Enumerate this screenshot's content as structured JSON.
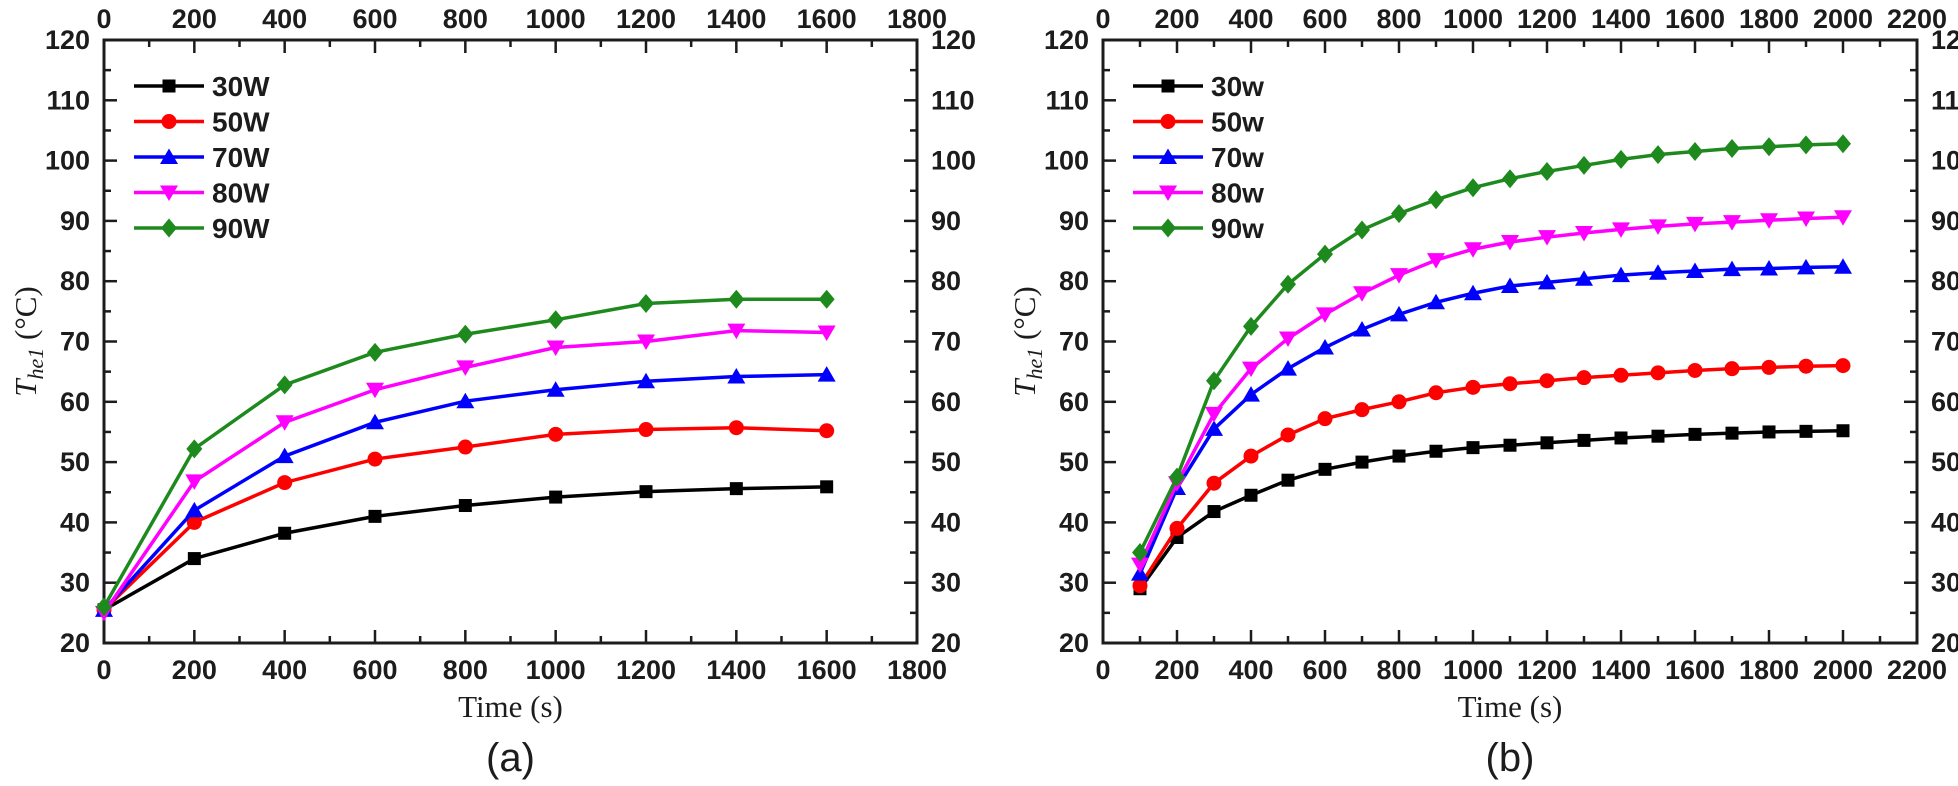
{
  "figure": {
    "background": "#ffffff"
  },
  "chart_data": [
    {
      "type": "line",
      "panel_label": "(a)",
      "xlabel": "Time (s)",
      "ylabel": {
        "symbol": "T",
        "subscript": "he1",
        "unit": "(°C)"
      },
      "xlim": [
        0,
        1800
      ],
      "ylim": [
        20,
        120
      ],
      "xticks": [
        0,
        200,
        400,
        600,
        800,
        1000,
        1200,
        1400,
        1600,
        1800
      ],
      "yticks": [
        20,
        30,
        40,
        50,
        60,
        70,
        80,
        90,
        100,
        110,
        120
      ],
      "xminor_step": 100,
      "yminor_step": 5,
      "grid": false,
      "legend_position": "top-left",
      "axes_mirrored": true,
      "x": [
        0,
        200,
        400,
        600,
        800,
        1000,
        1200,
        1400,
        1600
      ],
      "series": [
        {
          "name": "30W",
          "color": "#000000",
          "marker": "square",
          "values": [
            25.5,
            34.0,
            38.2,
            41.0,
            42.8,
            44.2,
            45.1,
            45.6,
            45.9
          ]
        },
        {
          "name": "50W",
          "color": "#ff0000",
          "marker": "circle",
          "values": [
            25.5,
            40.0,
            46.6,
            50.5,
            52.5,
            54.6,
            55.4,
            55.7,
            55.2
          ]
        },
        {
          "name": "70W",
          "color": "#0000ff",
          "marker": "triangle-up",
          "values": [
            25.5,
            42.0,
            51.0,
            56.6,
            60.1,
            62.0,
            63.4,
            64.2,
            64.5
          ]
        },
        {
          "name": "80W",
          "color": "#ff00ff",
          "marker": "triangle-down",
          "values": [
            25.0,
            46.8,
            56.6,
            62.0,
            65.7,
            69.0,
            70.0,
            71.8,
            71.5
          ]
        },
        {
          "name": "90W",
          "color": "#1e8a1e",
          "marker": "diamond",
          "values": [
            26.0,
            52.2,
            62.8,
            68.2,
            71.2,
            73.6,
            76.3,
            77.0,
            77.0
          ]
        }
      ]
    },
    {
      "type": "line",
      "panel_label": "(b)",
      "xlabel": "Time (s)",
      "ylabel": {
        "symbol": "T",
        "subscript": "he1",
        "unit": "(°C)"
      },
      "xlim": [
        0,
        2200
      ],
      "ylim": [
        20,
        120
      ],
      "xticks": [
        0,
        200,
        400,
        600,
        800,
        1000,
        1200,
        1400,
        1600,
        1800,
        2000,
        2200
      ],
      "yticks": [
        20,
        30,
        40,
        50,
        60,
        70,
        80,
        90,
        100,
        110,
        120
      ],
      "xminor_step": 100,
      "yminor_step": 5,
      "grid": false,
      "legend_position": "top-left",
      "axes_mirrored": true,
      "x": [
        100,
        200,
        300,
        400,
        500,
        600,
        700,
        800,
        900,
        1000,
        1100,
        1200,
        1300,
        1400,
        1500,
        1600,
        1700,
        1800,
        1900,
        2000
      ],
      "series": [
        {
          "name": "30w",
          "color": "#000000",
          "marker": "square",
          "values": [
            29.0,
            37.5,
            41.8,
            44.5,
            47.0,
            48.8,
            50.0,
            51.0,
            51.8,
            52.4,
            52.8,
            53.2,
            53.6,
            54.0,
            54.3,
            54.6,
            54.8,
            55.0,
            55.1,
            55.2
          ]
        },
        {
          "name": "50w",
          "color": "#ff0000",
          "marker": "circle",
          "values": [
            29.5,
            39.0,
            46.5,
            51.0,
            54.5,
            57.2,
            58.7,
            60.0,
            61.5,
            62.4,
            63.0,
            63.5,
            64.0,
            64.4,
            64.8,
            65.2,
            65.5,
            65.7,
            65.9,
            66.0
          ]
        },
        {
          "name": "70w",
          "color": "#0000ff",
          "marker": "triangle-up",
          "values": [
            31.5,
            45.7,
            55.5,
            61.2,
            65.5,
            69.0,
            72.0,
            74.5,
            76.5,
            78.0,
            79.2,
            79.8,
            80.4,
            81.0,
            81.4,
            81.7,
            82.0,
            82.1,
            82.3,
            82.4
          ]
        },
        {
          "name": "80w",
          "color": "#ff00ff",
          "marker": "triangle-down",
          "values": [
            33.0,
            46.5,
            58.0,
            65.5,
            70.5,
            74.5,
            78.0,
            81.0,
            83.5,
            85.3,
            86.5,
            87.3,
            88.0,
            88.6,
            89.1,
            89.5,
            89.8,
            90.1,
            90.4,
            90.6
          ]
        },
        {
          "name": "90w",
          "color": "#1e8a1e",
          "marker": "diamond",
          "values": [
            35.0,
            47.5,
            63.5,
            72.5,
            79.5,
            84.5,
            88.5,
            91.2,
            93.5,
            95.5,
            97.0,
            98.2,
            99.2,
            100.2,
            101.0,
            101.5,
            102.0,
            102.3,
            102.6,
            102.8
          ]
        }
      ]
    }
  ]
}
